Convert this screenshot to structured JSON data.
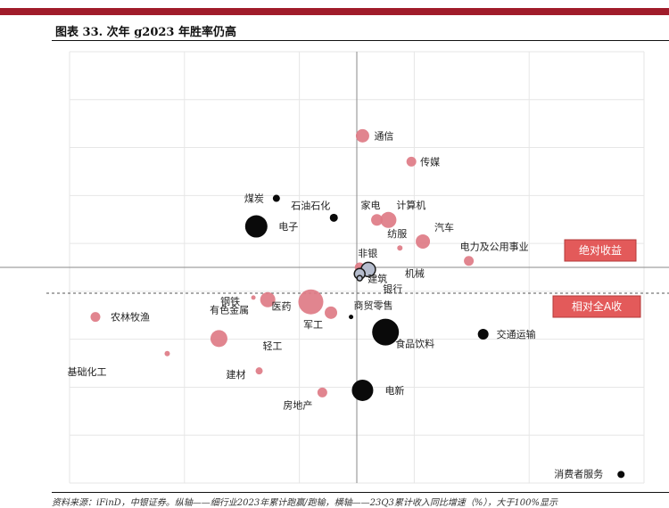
{
  "page": {
    "title": "图表 33. 次年 g2023 年胜率仍高",
    "source": "资料来源：iFinD，中银证券。纵轴——细行业2023年累计跑赢/跑输，横轴——23Q3累计收入同比增速（%），大于100%显示"
  },
  "chart_data": {
    "type": "scatter",
    "title": "",
    "xlabel": "",
    "ylabel": "",
    "xlim": [
      0,
      100
    ],
    "ylim": [
      0,
      100
    ],
    "grid": true,
    "reference_lines": {
      "vertical_solid_x": 50,
      "horizontal_solid_y": 50,
      "horizontal_dashed_y": 44
    },
    "tags": [
      {
        "name": "absolute",
        "text": "绝对收益"
      },
      {
        "name": "relative",
        "text": "相对全A收"
      }
    ],
    "colors": {
      "pink": "#de7b86",
      "black": "#0a0a0a",
      "grey": "#b5bccd"
    },
    "points": [
      {
        "label": "通信",
        "x": 51.0,
        "y": 80.5,
        "size": 15,
        "color": "pink"
      },
      {
        "label": "传媒",
        "x": 59.5,
        "y": 74.5,
        "size": 11,
        "color": "pink"
      },
      {
        "label": "煤炭",
        "x": 36.0,
        "y": 66.0,
        "size": 8,
        "color": "black"
      },
      {
        "label": "石油石化",
        "x": 46.0,
        "y": 61.5,
        "size": 9,
        "color": "black"
      },
      {
        "label": "家电",
        "x": 53.5,
        "y": 61.0,
        "size": 13,
        "color": "pink"
      },
      {
        "label": "计算机",
        "x": 55.5,
        "y": 61.0,
        "size": 18,
        "color": "pink"
      },
      {
        "label": "电子",
        "x": 32.5,
        "y": 59.5,
        "size": 25,
        "color": "black"
      },
      {
        "label": "纺服",
        "x": 57.5,
        "y": 54.5,
        "size": 6,
        "color": "pink"
      },
      {
        "label": "汽车",
        "x": 61.5,
        "y": 56.0,
        "size": 16,
        "color": "pink"
      },
      {
        "label": "电力及公用事业",
        "x": 69.5,
        "y": 51.5,
        "size": 11,
        "color": "pink"
      },
      {
        "label": "非银",
        "x": 50.5,
        "y": 50.0,
        "size": 11,
        "color": "pink"
      },
      {
        "label": "机械",
        "x": 52.0,
        "y": 49.5,
        "size": 16,
        "color": "grey"
      },
      {
        "label": "建筑",
        "x": 50.5,
        "y": 48.5,
        "size": 12,
        "color": "grey"
      },
      {
        "label": "银行",
        "x": 50.5,
        "y": 47.5,
        "size": 6,
        "color": "grey"
      },
      {
        "label": "钢铁",
        "x": 32.0,
        "y": 43.0,
        "size": 5,
        "color": "pink"
      },
      {
        "label": "有色金属",
        "x": 34.5,
        "y": 42.5,
        "size": 17,
        "color": "pink"
      },
      {
        "label": "医药",
        "x": 42.0,
        "y": 42.0,
        "size": 28,
        "color": "pink"
      },
      {
        "label": "军工",
        "x": 45.5,
        "y": 39.5,
        "size": 14,
        "color": "pink"
      },
      {
        "label": "商贸零售",
        "x": 49.0,
        "y": 38.5,
        "size": 5,
        "color": "black"
      },
      {
        "label": "农林牧渔",
        "x": 4.5,
        "y": 38.5,
        "size": 11,
        "color": "pink"
      },
      {
        "label": "食品饮料",
        "x": 55.0,
        "y": 35.0,
        "size": 30,
        "color": "black"
      },
      {
        "label": "交通运输",
        "x": 72.0,
        "y": 34.5,
        "size": 12,
        "color": "black"
      },
      {
        "label": "轻工",
        "x": 26.0,
        "y": 33.5,
        "size": 19,
        "color": "pink"
      },
      {
        "label": "基础化工",
        "x": 17.0,
        "y": 30.0,
        "size": 6,
        "color": "pink"
      },
      {
        "label": "建材",
        "x": 33.0,
        "y": 26.0,
        "size": 8,
        "color": "pink"
      },
      {
        "label": "电新",
        "x": 51.0,
        "y": 21.5,
        "size": 24,
        "color": "black"
      },
      {
        "label": "房地产",
        "x": 44.0,
        "y": 21.0,
        "size": 11,
        "color": "pink"
      },
      {
        "label": "消费者服务",
        "x": 96.0,
        "y": 2.0,
        "size": 8,
        "color": "black"
      }
    ]
  }
}
